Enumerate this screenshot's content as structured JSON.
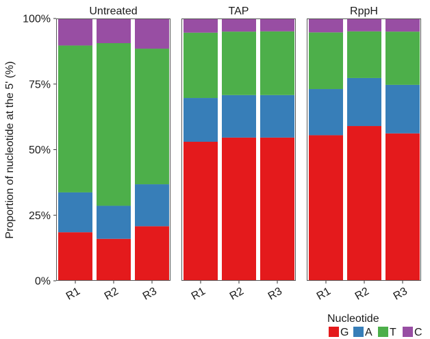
{
  "chart_data": {
    "type": "bar",
    "stacked": true,
    "ylabel": "Proportion of nucleotide at the 5' (%)",
    "y_ticks": [
      "0%",
      "25%",
      "50%",
      "75%",
      "100%"
    ],
    "ylim": [
      0,
      100
    ],
    "grid": false,
    "legend": {
      "title": "Nucleotide",
      "placement": "bottom-right",
      "entries": [
        {
          "name": "G",
          "color": "#e41a1c"
        },
        {
          "name": "A",
          "color": "#377eb8"
        },
        {
          "name": "T",
          "color": "#4daf4a"
        },
        {
          "name": "C",
          "color": "#984ea3"
        }
      ]
    },
    "panels": [
      {
        "title": "Untreated",
        "categories": [
          "R1",
          "R2",
          "R3"
        ],
        "series": [
          {
            "name": "G",
            "values": [
              18.5,
              16,
              20.8
            ]
          },
          {
            "name": "A",
            "values": [
              15.2,
              12.6,
              16
            ]
          },
          {
            "name": "T",
            "values": [
              56,
              62,
              51.7
            ]
          },
          {
            "name": "C",
            "values": [
              10.3,
              9.4,
              11.5
            ]
          }
        ]
      },
      {
        "title": "TAP",
        "categories": [
          "R1",
          "R2",
          "R3"
        ],
        "series": [
          {
            "name": "G",
            "values": [
              53,
              54.6,
              54.6
            ]
          },
          {
            "name": "A",
            "values": [
              16.7,
              16.2,
              16.2
            ]
          },
          {
            "name": "T",
            "values": [
              24.9,
              24.2,
              24.3
            ]
          },
          {
            "name": "C",
            "values": [
              5.4,
              5,
              4.9
            ]
          }
        ]
      },
      {
        "title": "RppH",
        "categories": [
          "R1",
          "R2",
          "R3"
        ],
        "series": [
          {
            "name": "G",
            "values": [
              55.5,
              59,
              56.2
            ]
          },
          {
            "name": "A",
            "values": [
              17.6,
              18.3,
              18.5
            ]
          },
          {
            "name": "T",
            "values": [
              21.6,
              17.8,
              20.3
            ]
          },
          {
            "name": "C",
            "values": [
              5.3,
              4.9,
              5
            ]
          }
        ]
      }
    ]
  }
}
